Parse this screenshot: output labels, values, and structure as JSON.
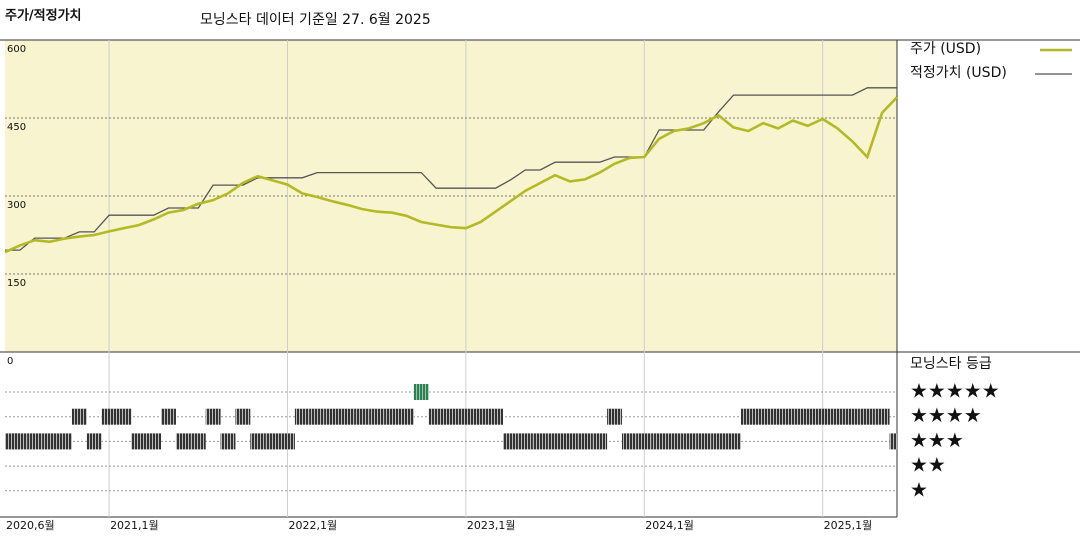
{
  "chart_data": {
    "type": "line",
    "title": "주가/적정가치",
    "subtitle": "모닝스타 데이터 기준일 27. 6월 2025",
    "x": [
      "2020-06",
      "2020-07",
      "2020-08",
      "2020-09",
      "2020-10",
      "2020-11",
      "2020-12",
      "2021-01",
      "2021-02",
      "2021-03",
      "2021-04",
      "2021-05",
      "2021-06",
      "2021-07",
      "2021-08",
      "2021-09",
      "2021-10",
      "2021-11",
      "2021-12",
      "2022-01",
      "2022-02",
      "2022-03",
      "2022-04",
      "2022-05",
      "2022-06",
      "2022-07",
      "2022-08",
      "2022-09",
      "2022-10",
      "2022-11",
      "2022-12",
      "2023-01",
      "2023-02",
      "2023-03",
      "2023-04",
      "2023-05",
      "2023-06",
      "2023-07",
      "2023-08",
      "2023-09",
      "2023-10",
      "2023-11",
      "2023-12",
      "2024-01",
      "2024-02",
      "2024-03",
      "2024-04",
      "2024-05",
      "2024-06",
      "2024-07",
      "2024-08",
      "2024-09",
      "2024-10",
      "2024-11",
      "2024-12",
      "2025-01",
      "2025-02",
      "2025-03",
      "2025-04",
      "2025-05",
      "2025-06"
    ],
    "xticks": [
      {
        "value": "2020-06",
        "label": "2020,6월"
      },
      {
        "value": "2021-01",
        "label": "2021,1월"
      },
      {
        "value": "2022-01",
        "label": "2022,1월"
      },
      {
        "value": "2023-01",
        "label": "2023,1월"
      },
      {
        "value": "2024-01",
        "label": "2024,1월"
      },
      {
        "value": "2025-01",
        "label": "2025,1월"
      }
    ],
    "ylim": [
      0,
      600
    ],
    "yticks": [
      0,
      150,
      300,
      450,
      600
    ],
    "grid": true,
    "legend_position": "right",
    "background": "#f8f4cf",
    "series": [
      {
        "name": "주가 (USD)",
        "color": "#b3ba24",
        "values": [
          192,
          205,
          215,
          212,
          218,
          222,
          225,
          232,
          238,
          244,
          255,
          268,
          273,
          285,
          292,
          305,
          325,
          338,
          330,
          322,
          305,
          298,
          290,
          283,
          275,
          270,
          268,
          262,
          250,
          245,
          240,
          238,
          250,
          270,
          290,
          310,
          325,
          340,
          328,
          332,
          345,
          362,
          373,
          375,
          410,
          425,
          430,
          440,
          455,
          432,
          425,
          440,
          430,
          445,
          435,
          448,
          430,
          405,
          375,
          460,
          490
        ]
      },
      {
        "name": "적정가치 (USD)",
        "color": "#555555",
        "values": [
          196,
          196,
          219,
          219,
          219,
          231,
          231,
          263,
          263,
          263,
          263,
          277,
          277,
          277,
          321,
          321,
          321,
          335,
          335,
          335,
          335,
          345,
          345,
          345,
          345,
          345,
          345,
          345,
          345,
          315,
          315,
          315,
          315,
          315,
          331,
          350,
          350,
          365,
          365,
          365,
          365,
          375,
          375,
          375,
          427,
          427,
          427,
          427,
          462,
          494,
          494,
          494,
          494,
          494,
          494,
          494,
          494,
          494,
          508,
          508,
          508
        ]
      }
    ],
    "rating": {
      "title": "모닝스타 등급",
      "levels": [
        5,
        4,
        3,
        2,
        1
      ],
      "labels": [
        "★★★★★",
        "★★★★",
        "★★★",
        "★★",
        "★"
      ],
      "color": "#333333",
      "highlight_color": "#2e7d5b",
      "values": [
        3,
        3,
        3,
        3,
        3,
        4,
        3,
        4,
        4,
        3,
        3,
        4,
        3,
        3,
        4,
        3,
        4,
        3,
        3,
        3,
        4,
        4,
        4,
        4,
        4,
        4,
        4,
        4,
        5,
        4,
        4,
        4,
        4,
        4,
        3,
        3,
        3,
        3,
        3,
        3,
        3,
        4,
        3,
        3,
        3,
        3,
        3,
        3,
        3,
        3,
        4,
        4,
        4,
        4,
        4,
        4,
        4,
        4,
        4,
        4,
        3
      ]
    }
  }
}
